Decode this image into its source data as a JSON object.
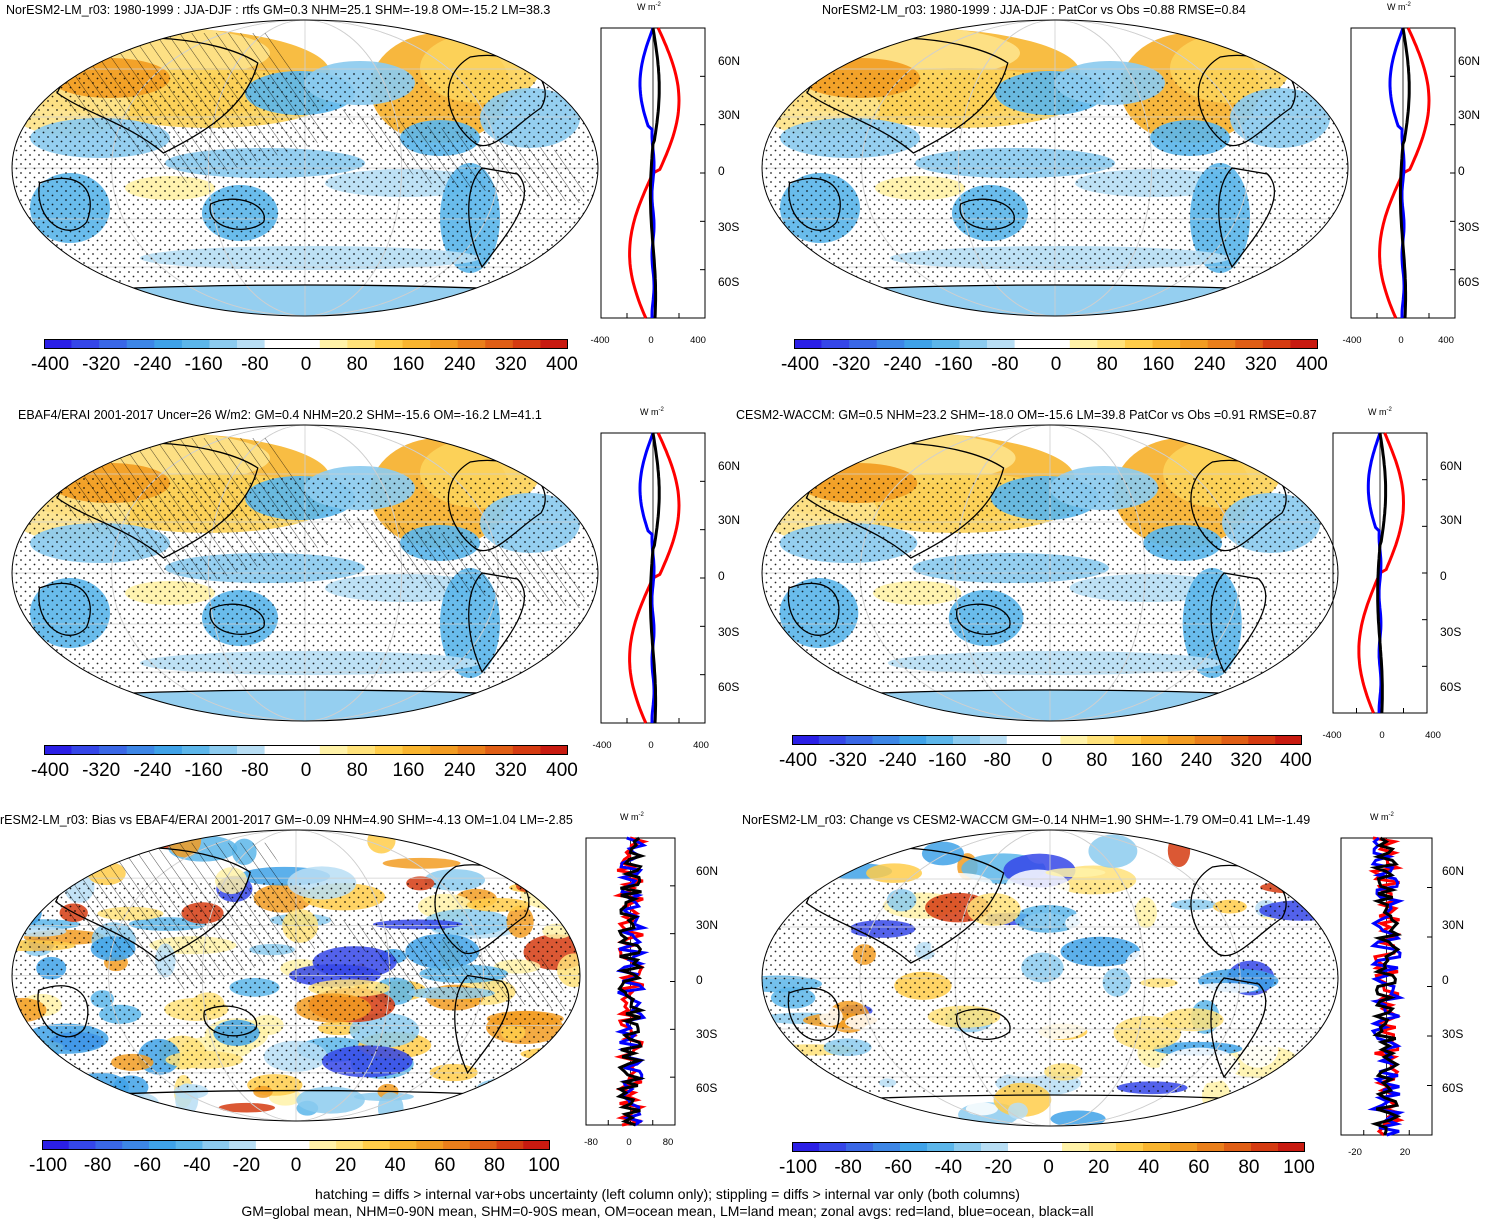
{
  "panels": [
    {
      "id": "p1",
      "title": "NorESM2-LM_r03: 1980-1999 : JJA-DJF : rtfs GM=0.3 NHM=25.1 SHM=-19.8 OM=-15.2 LM=38.3",
      "units": "W m",
      "units_sup": "-2",
      "colorbar_labels": [
        "-400",
        "-320",
        "-240",
        "-160",
        "-80",
        "0",
        "80",
        "160",
        "240",
        "320",
        "400"
      ],
      "zonal_x_labels": [
        "-400",
        "0",
        "400"
      ],
      "lat_labels": [
        "60N",
        "30N",
        "0",
        "30S",
        "60S"
      ],
      "hatching": true
    },
    {
      "id": "p2",
      "title": "NorESM2-LM_r03: 1980-1999 : JJA-DJF : PatCor vs Obs =0.88 RMSE=0.84",
      "units": "W m",
      "units_sup": "-2",
      "colorbar_labels": [
        "-400",
        "-320",
        "-240",
        "-160",
        "-80",
        "0",
        "80",
        "160",
        "240",
        "320",
        "400"
      ],
      "zonal_x_labels": [
        "-400",
        "0",
        "400"
      ],
      "lat_labels": [
        "60N",
        "30N",
        "0",
        "30S",
        "60S"
      ],
      "hatching": false
    },
    {
      "id": "p3",
      "title": "EBAF4/ERAI 2001-2017 Uncer=26 W/m2: GM=0.4 NHM=20.2 SHM=-15.6 OM=-16.2 LM=41.1",
      "units": "W m",
      "units_sup": "-2",
      "colorbar_labels": [
        "-400",
        "-320",
        "-240",
        "-160",
        "-80",
        "0",
        "80",
        "160",
        "240",
        "320",
        "400"
      ],
      "zonal_x_labels": [
        "-400",
        "0",
        "400"
      ],
      "lat_labels": [
        "60N",
        "30N",
        "0",
        "30S",
        "60S"
      ],
      "hatching": true
    },
    {
      "id": "p4",
      "title": "CESM2-WACCM: GM=0.5 NHM=23.2 SHM=-18.0 OM=-15.6 LM=39.8 PatCor vs Obs =0.91 RMSE=0.87",
      "units": "W m",
      "units_sup": "-2",
      "colorbar_labels": [
        "-400",
        "-320",
        "-240",
        "-160",
        "-80",
        "0",
        "80",
        "160",
        "240",
        "320",
        "400"
      ],
      "zonal_x_labels": [
        "-400",
        "0",
        "400"
      ],
      "lat_labels": [
        "60N",
        "30N",
        "0",
        "30S",
        "60S"
      ],
      "hatching": false
    },
    {
      "id": "p5",
      "title": "rESM2-LM_r03: Bias vs EBAF4/ERAI 2001-2017 GM=-0.09 NHM=4.90 SHM=-4.13 OM=1.04 LM=-2.85",
      "units": "W m",
      "units_sup": "-2",
      "colorbar_labels": [
        "-100",
        "-80",
        "-60",
        "-40",
        "-20",
        "0",
        "20",
        "40",
        "60",
        "80",
        "100"
      ],
      "zonal_x_labels": [
        "-80",
        "0",
        "80"
      ],
      "lat_labels": [
        "60N",
        "30N",
        "0",
        "30S",
        "60S"
      ],
      "hatching": true
    },
    {
      "id": "p6",
      "title": "NorESM2-LM_r03: Change vs CESM2-WACCM GM=-0.14 NHM=1.90 SHM=-1.79 OM=0.41 LM=-1.49",
      "units": "W m",
      "units_sup": "-2",
      "colorbar_labels": [
        "-100",
        "-80",
        "-60",
        "-40",
        "-20",
        "0",
        "20",
        "40",
        "60",
        "80",
        "100"
      ],
      "zonal_x_labels": [
        "-20",
        "20"
      ],
      "lat_labels": [
        "60N",
        "30N",
        "0",
        "30S",
        "60S"
      ],
      "hatching": false
    }
  ],
  "colors": {
    "palette": [
      "#2b1fe6",
      "#3546e8",
      "#3a67e6",
      "#3d86e6",
      "#3fa2e8",
      "#5cb6ea",
      "#8ccbef",
      "#b8def4",
      "#ffffff",
      "#ffffff",
      "#fff2a8",
      "#ffe27a",
      "#ffcd4a",
      "#f9b52f",
      "#f29c22",
      "#ea7f1b",
      "#e05e15",
      "#d53b11",
      "#c81a10"
    ],
    "land_line": "#000000",
    "land_zonal": "#ff0000",
    "ocean_zonal": "#0000ff",
    "all_zonal": "#000000"
  },
  "footer": {
    "line1": "hatching = diffs > internal var+obs uncertainty (left column only); stippling = diffs > internal var only (both columns)",
    "line2": "GM=global mean, NHM=0-90N mean, SHM=0-90S mean, OM=ocean mean, LM=land mean; zonal avgs: red=land, blue=ocean, black=all"
  }
}
